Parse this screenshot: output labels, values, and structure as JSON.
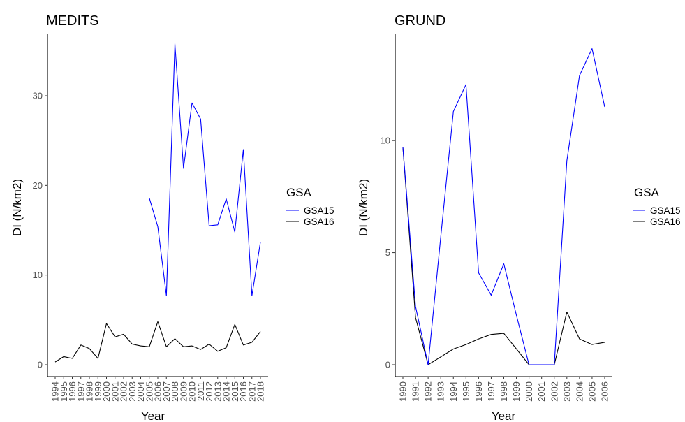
{
  "chart_data": [
    {
      "type": "line",
      "title": "MEDITS",
      "xlabel": "Year",
      "ylabel": "DI (N/km2)",
      "ylim": [
        0,
        36
      ],
      "yticks": [
        0,
        10,
        20,
        30
      ],
      "x": [
        "1994",
        "1995",
        "1996",
        "1997",
        "1998",
        "1999",
        "2000",
        "2001",
        "2002",
        "2003",
        "2004",
        "2005",
        "2006",
        "2007",
        "2008",
        "2009",
        "2010",
        "2011",
        "2012",
        "2013",
        "2014",
        "2015",
        "2016",
        "2017",
        "2018"
      ],
      "legend": {
        "title": "GSA",
        "position": "right"
      },
      "grid": false,
      "series": [
        {
          "name": "GSA15",
          "color": "#0000ff",
          "values": [
            null,
            null,
            null,
            null,
            null,
            null,
            null,
            null,
            null,
            null,
            null,
            18.6,
            15.4,
            7.7,
            35.8,
            21.9,
            29.2,
            27.4,
            15.5,
            15.6,
            18.5,
            14.8,
            24.0,
            7.7,
            13.7
          ]
        },
        {
          "name": "GSA16",
          "color": "#000000",
          "values": [
            0.3,
            0.9,
            0.7,
            2.2,
            1.8,
            0.7,
            4.6,
            3.1,
            3.4,
            2.3,
            2.1,
            2.0,
            4.8,
            2.0,
            2.9,
            2.0,
            2.1,
            1.7,
            2.3,
            1.5,
            1.9,
            4.5,
            2.2,
            2.5,
            3.7
          ]
        }
      ]
    },
    {
      "type": "line",
      "title": "GRUND",
      "xlabel": "Year",
      "ylabel": "DI (N/km2)",
      "ylim": [
        0,
        14.4
      ],
      "yticks": [
        0,
        5,
        10
      ],
      "x": [
        "1990",
        "1991",
        "1992",
        "1993",
        "1994",
        "1995",
        "1996",
        "1997",
        "1998",
        "1999",
        "2000",
        "2001",
        "2002",
        "2003",
        "2004",
        "2005",
        "2006"
      ],
      "legend": {
        "title": "GSA",
        "position": "right"
      },
      "grid": false,
      "series": [
        {
          "name": "GSA15",
          "color": "#0000ff",
          "values": [
            9.7,
            2.6,
            0.0,
            5.7,
            11.3,
            12.5,
            4.1,
            3.1,
            4.5,
            2.2,
            0.0,
            0.0,
            0.0,
            9.1,
            12.9,
            14.1,
            11.5
          ]
        },
        {
          "name": "GSA16",
          "color": "#000000",
          "values": [
            9.7,
            2.1,
            0.0,
            0.35,
            0.7,
            0.9,
            1.15,
            1.35,
            1.4,
            0.7,
            0.0,
            0.0,
            0.0,
            2.35,
            1.15,
            0.9,
            1.0
          ]
        }
      ]
    }
  ]
}
